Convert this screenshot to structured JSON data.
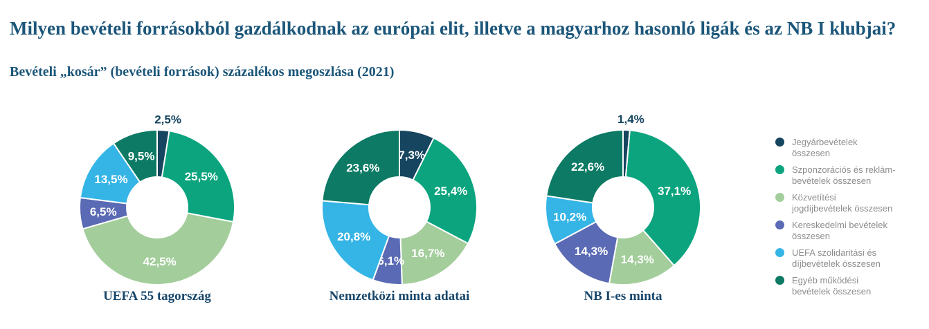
{
  "header": {
    "title": "Milyen bevételi forrásokból gazdálkodnak az európai elit, illetve a magyarhoz hasonló ligák és az NB I klubjai?",
    "subtitle": "Bevételi „kosár” (bevételi források) százalékos megoszlása (2021)"
  },
  "colors": {
    "background": "#ffffff",
    "title_text": "#1b567a",
    "caption_text": "#17466b",
    "legend_text": "#8c8c8c",
    "label_inside": "#ffffff",
    "label_outside": "#16455f",
    "slice_gap": "#ffffff"
  },
  "legend": {
    "items": [
      {
        "lines": [
          "Jegyárbevételek",
          "összesen"
        ],
        "color": "#16455f"
      },
      {
        "lines": [
          "Szponzorációs és reklám-",
          "bevételek összesen"
        ],
        "color": "#0ba47e"
      },
      {
        "lines": [
          "Közvetítési",
          "jogdíjbevételek összesen"
        ],
        "color": "#a3cd9b"
      },
      {
        "lines": [
          "Kereskedelmi bevételek",
          "összesen"
        ],
        "color": "#5a6ab4"
      },
      {
        "lines": [
          "UEFA szolidaritási és",
          "díjbevételek összesen"
        ],
        "color": "#35b4e6"
      },
      {
        "lines": [
          "Egyéb működési",
          "bevételek összesen"
        ],
        "color": "#0c7a64"
      }
    ]
  },
  "chart_data": {
    "type": "pie",
    "subtype": "donut",
    "unit": "%",
    "legend_position": "right",
    "categories": [
      "Jegyárbevételek összesen",
      "Szponzorációs és reklámbevételek összesen",
      "Közvetítési jogdíjbevételek összesen",
      "Kereskedelmi bevételek összesen",
      "UEFA szolidaritási és díjbevételek összesen",
      "Egyéb működési bevételek összesen"
    ],
    "colors": [
      "#16455f",
      "#0ba47e",
      "#a3cd9b",
      "#5a6ab4",
      "#35b4e6",
      "#0c7a64"
    ],
    "charts": [
      {
        "caption": "UEFA 55 tagország",
        "values": [
          2.5,
          25.5,
          42.5,
          6.5,
          13.5,
          9.5
        ],
        "display_labels": [
          "2,5%",
          "25,5%",
          "42,5%",
          "6,5%",
          "13,5%",
          "9,5%"
        ],
        "outside_labels": [
          0
        ]
      },
      {
        "caption": "Nemzetközi minta adatai",
        "values": [
          7.3,
          25.4,
          16.7,
          6.1,
          20.8,
          23.6
        ],
        "display_labels": [
          "7,3%",
          "25,4%",
          "16,7%",
          "6,1%",
          "20,8%",
          "23,6%"
        ],
        "outside_labels": []
      },
      {
        "caption": "NB I-es minta",
        "values": [
          1.4,
          37.1,
          14.3,
          14.3,
          10.2,
          22.6
        ],
        "display_labels": [
          "1,4%",
          "37,1%",
          "14,3%",
          "14,3%",
          "10,2%",
          "22,6%"
        ],
        "outside_labels": [
          0
        ]
      }
    ]
  }
}
